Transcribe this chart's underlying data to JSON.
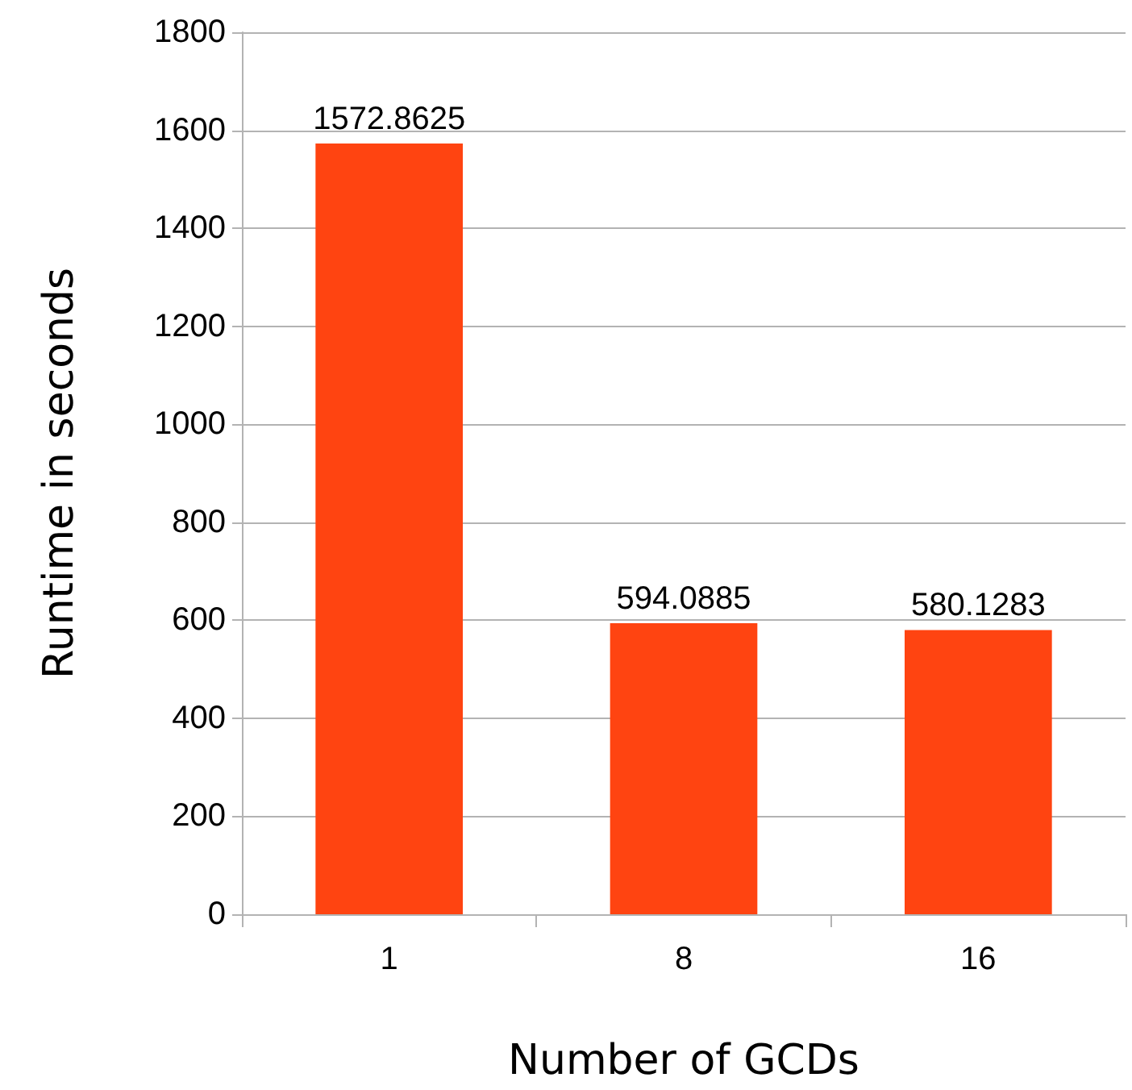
{
  "chart_data": {
    "type": "bar",
    "xlabel": "Number of GCDs",
    "ylabel": "Runtime in seconds",
    "categories": [
      "1",
      "8",
      "16"
    ],
    "values": [
      1572.8625,
      594.0885,
      580.1283
    ],
    "color": "#ff4411",
    "ylim": [
      0,
      1800
    ],
    "yticks": [
      0,
      200,
      400,
      600,
      800,
      1000,
      1200,
      1400,
      1600,
      1800
    ],
    "grid": "y",
    "data_labels": true
  }
}
